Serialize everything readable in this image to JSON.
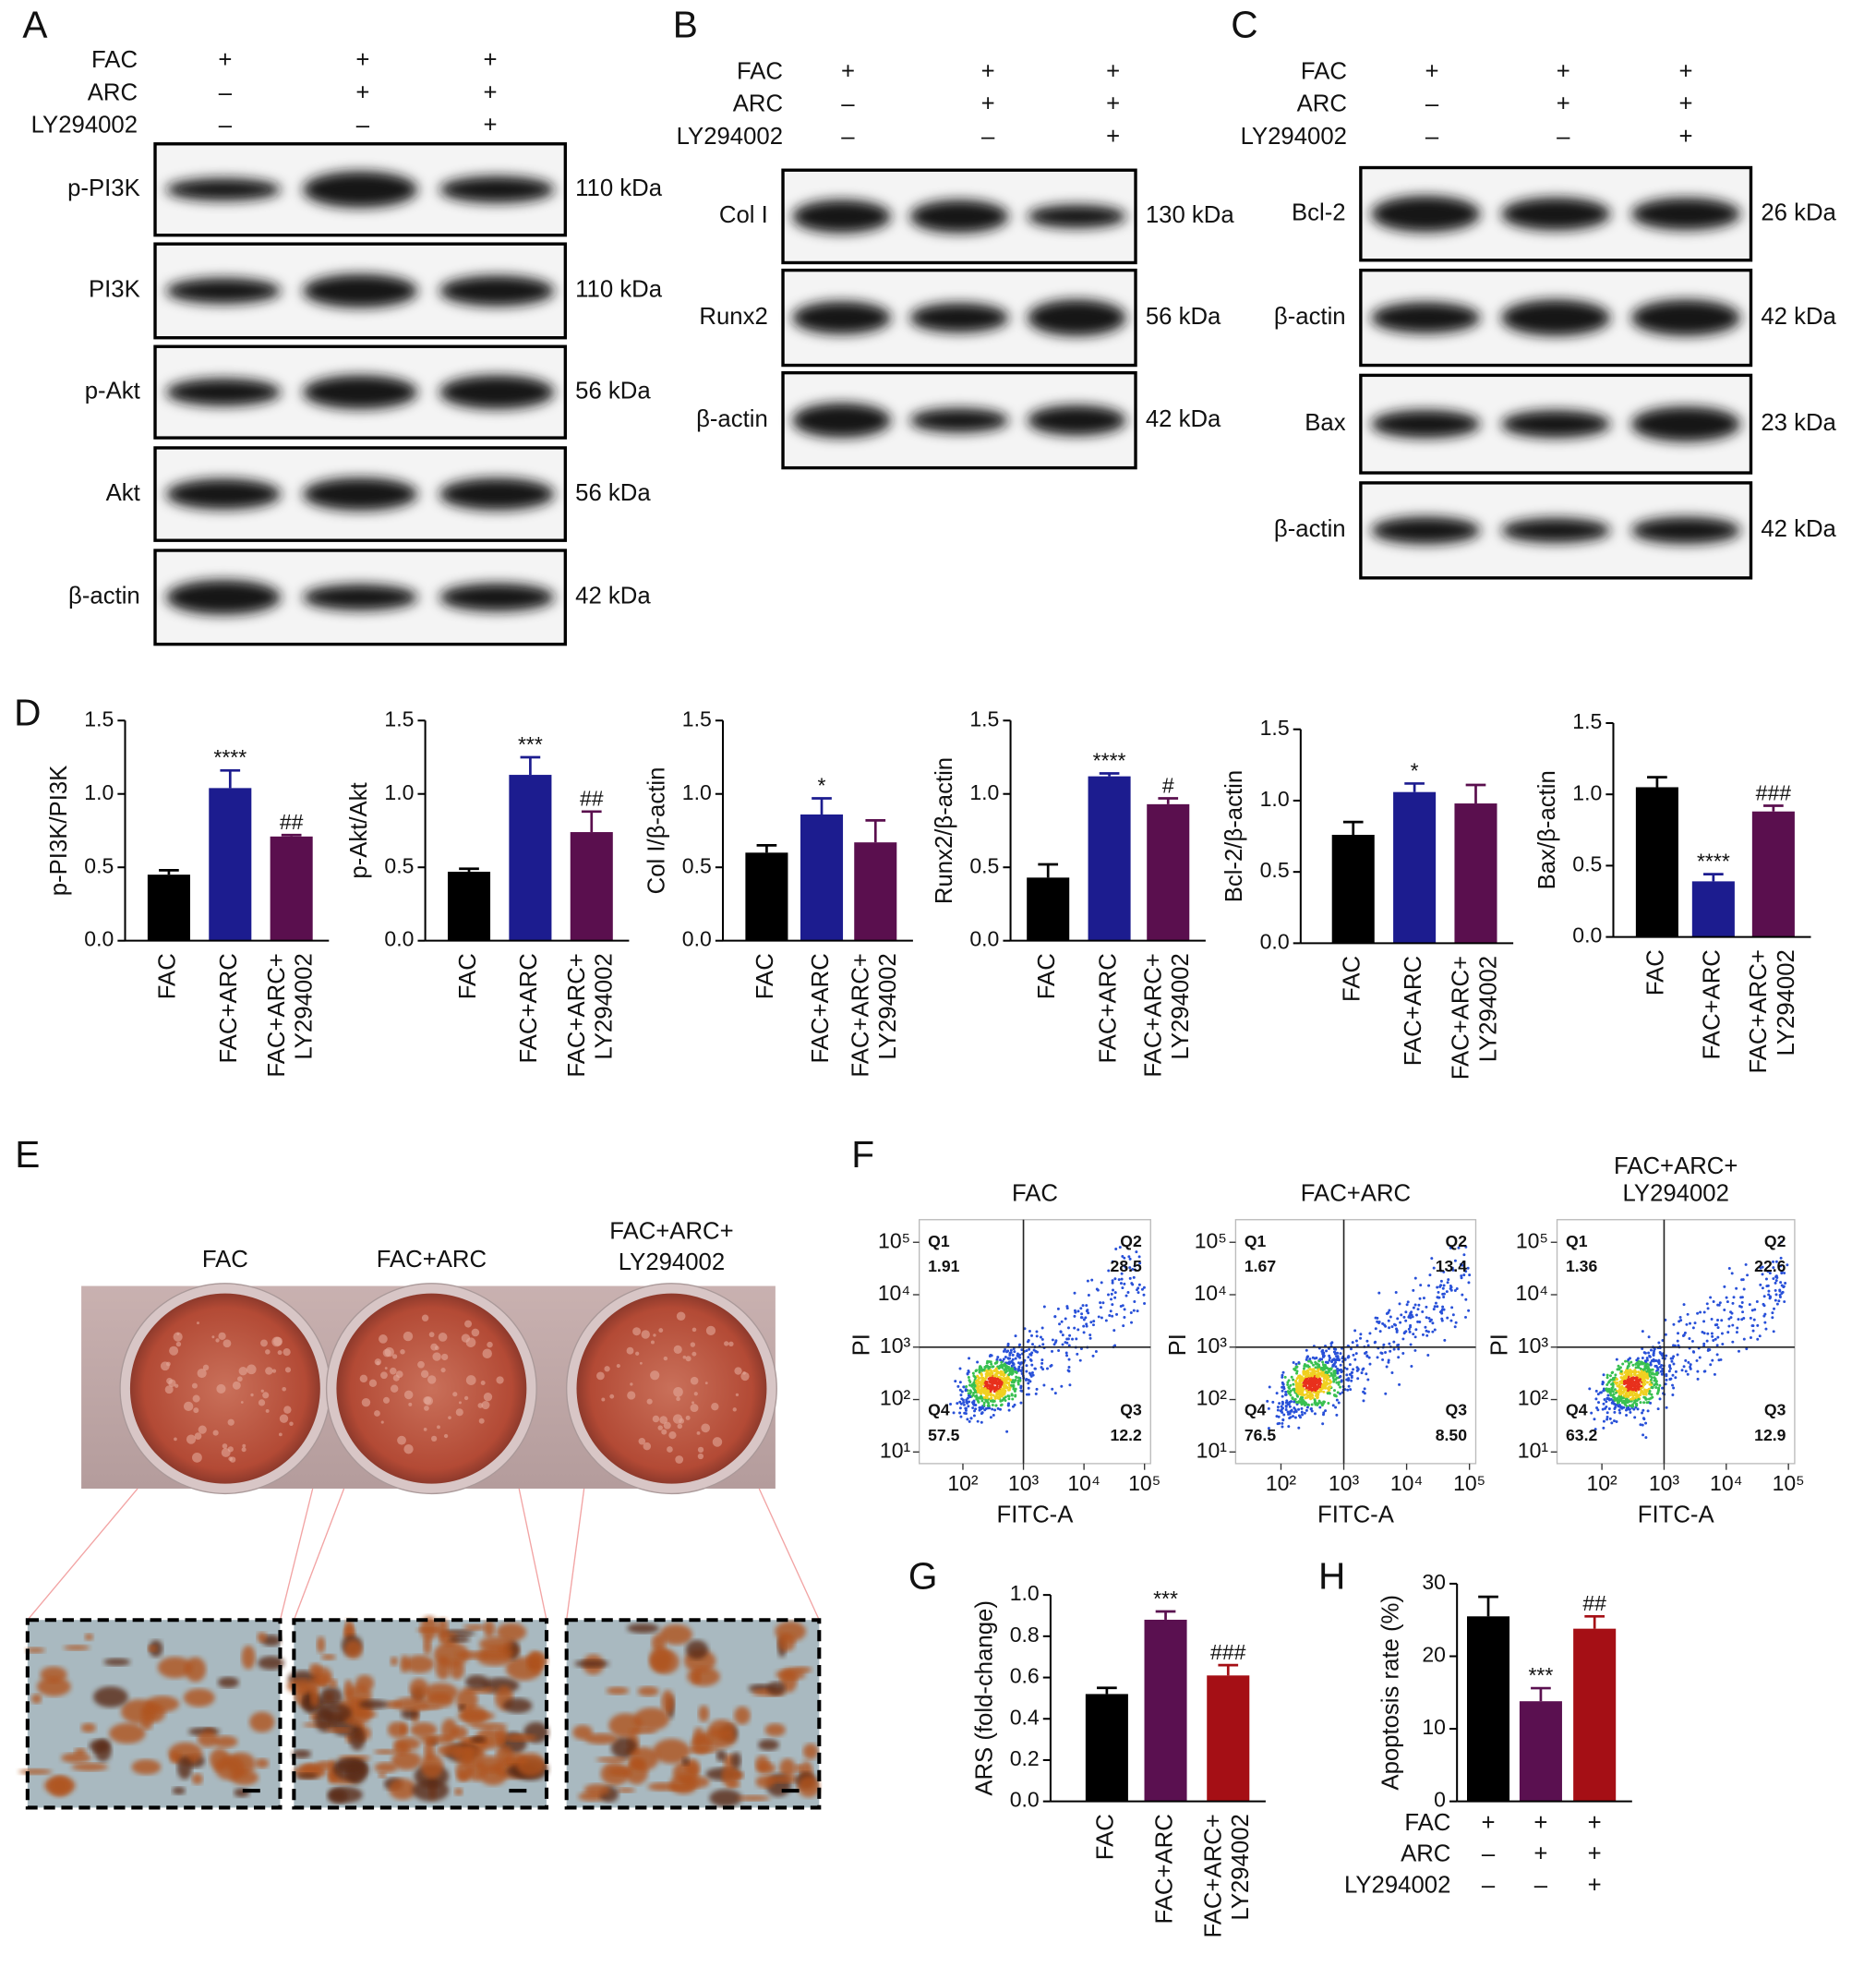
{
  "panel_labels": [
    "A",
    "B",
    "C",
    "D",
    "E",
    "F",
    "G",
    "H"
  ],
  "blots": [
    {
      "treatments": [
        {
          "name": "FAC",
          "signs": [
            "+",
            "+",
            "+"
          ]
        },
        {
          "name": "ARC",
          "signs": [
            "–",
            "+",
            "+"
          ]
        },
        {
          "name": "LY294002",
          "signs": [
            "–",
            "–",
            "+"
          ]
        }
      ],
      "bands": [
        {
          "protein": "p-PI3K",
          "size": "110 kDa"
        },
        {
          "protein": "PI3K",
          "size": "110 kDa"
        },
        {
          "protein": "p-Akt",
          "size": "56 kDa"
        },
        {
          "protein": "Akt",
          "size": "56 kDa"
        },
        {
          "protein": "β-actin",
          "size": "42 kDa"
        }
      ]
    },
    {
      "treatments": [
        {
          "name": "FAC",
          "signs": [
            "+",
            "+",
            "+"
          ]
        },
        {
          "name": "ARC",
          "signs": [
            "–",
            "+",
            "+"
          ]
        },
        {
          "name": "LY294002",
          "signs": [
            "–",
            "–",
            "+"
          ]
        }
      ],
      "bands": [
        {
          "protein": "Col I",
          "size": "130 kDa"
        },
        {
          "protein": "Runx2",
          "size": "56 kDa"
        },
        {
          "protein": "β-actin",
          "size": "42 kDa"
        }
      ]
    },
    {
      "treatments": [
        {
          "name": "FAC",
          "signs": [
            "+",
            "+",
            "+"
          ]
        },
        {
          "name": "ARC",
          "signs": [
            "–",
            "+",
            "+"
          ]
        },
        {
          "name": "LY294002",
          "signs": [
            "–",
            "–",
            "+"
          ]
        }
      ],
      "bands": [
        {
          "protein": "Bcl-2",
          "size": "26 kDa"
        },
        {
          "protein": "β-actin",
          "size": "42 kDa"
        },
        {
          "protein": "Bax",
          "size": "23 kDa"
        },
        {
          "protein": "β-actin",
          "size": "42 kDa"
        }
      ]
    }
  ],
  "staining": {
    "groups": [
      "FAC",
      "FAC+ARC",
      "FAC+ARC+ LY294002"
    ]
  },
  "flow": {
    "x_label": "FITC-A",
    "y_label": "PI",
    "log": true,
    "xlim": [
      19,
      126000
    ],
    "ylim": [
      6,
      270000
    ],
    "xticks": [
      {
        "value": 100,
        "label": "10²"
      },
      {
        "value": 1000,
        "label": "10³"
      },
      {
        "value": 10000,
        "label": "10⁴"
      },
      {
        "value": 100000,
        "label": "10⁵"
      }
    ],
    "yticks": [
      {
        "value": 10,
        "label": "10¹"
      },
      {
        "value": 100,
        "label": "10²"
      },
      {
        "value": 1000,
        "label": "10³"
      },
      {
        "value": 10000,
        "label": "10⁴"
      },
      {
        "value": 100000,
        "label": "10⁵"
      }
    ],
    "gate": [
      1000,
      1000
    ],
    "plots": [
      {
        "title": "FAC",
        "quadrants": [
          {
            "name": "Q1",
            "value": "1.91"
          },
          {
            "name": "Q2",
            "value": "28.5"
          },
          {
            "name": "Q3",
            "value": "12.2"
          },
          {
            "name": "Q4",
            "value": "57.5"
          }
        ]
      },
      {
        "title": "FAC+ARC",
        "quadrants": [
          {
            "name": "Q1",
            "value": "1.67"
          },
          {
            "name": "Q2",
            "value": "13.4"
          },
          {
            "name": "Q3",
            "value": "8.50"
          },
          {
            "name": "Q4",
            "value": "76.5"
          }
        ]
      },
      {
        "title": "FAC+ARC+ LY294002",
        "quadrants": [
          {
            "name": "Q1",
            "value": "1.36"
          },
          {
            "name": "Q2",
            "value": "22.6"
          },
          {
            "name": "Q3",
            "value": "12.9"
          },
          {
            "name": "Q4",
            "value": "63.2"
          }
        ]
      }
    ]
  },
  "chart_data": [
    {
      "type": "bar",
      "y_label": "p-PI3K/PI3K",
      "categories": [
        "FAC",
        "FAC+ARC",
        "FAC+ARC+ LY294002"
      ],
      "values": [
        0.45,
        1.04,
        0.71
      ],
      "errors": [
        0.03,
        0.12,
        0.01
      ],
      "annotations": [
        null,
        "****",
        "##"
      ],
      "colors": [
        "#000000",
        "#1c1c8f",
        "#5a0f4e"
      ],
      "ylim": [
        0,
        1.5
      ],
      "yticks": [
        {
          "value": 0,
          "label": "0.0"
        },
        {
          "value": 0.5,
          "label": "0.5"
        },
        {
          "value": 1,
          "label": "1.0"
        },
        {
          "value": 1.5,
          "label": "1.5"
        }
      ]
    },
    {
      "type": "bar",
      "y_label": "p-Akt/Akt",
      "categories": [
        "FAC",
        "FAC+ARC",
        "FAC+ARC+ LY294002"
      ],
      "values": [
        0.47,
        1.13,
        0.74
      ],
      "errors": [
        0.02,
        0.12,
        0.14
      ],
      "annotations": [
        null,
        "***",
        "##"
      ],
      "colors": [
        "#000000",
        "#1c1c8f",
        "#5a0f4e"
      ],
      "ylim": [
        0,
        1.5
      ],
      "yticks": [
        {
          "value": 0,
          "label": "0.0"
        },
        {
          "value": 0.5,
          "label": "0.5"
        },
        {
          "value": 1,
          "label": "1.0"
        },
        {
          "value": 1.5,
          "label": "1.5"
        }
      ]
    },
    {
      "type": "bar",
      "y_label": "Col I/β-actin",
      "categories": [
        "FAC",
        "FAC+ARC",
        "FAC+ARC+ LY294002"
      ],
      "values": [
        0.6,
        0.86,
        0.67
      ],
      "errors": [
        0.05,
        0.11,
        0.15
      ],
      "annotations": [
        null,
        "*",
        null
      ],
      "colors": [
        "#000000",
        "#1c1c8f",
        "#5a0f4e"
      ],
      "ylim": [
        0,
        1.5
      ],
      "yticks": [
        {
          "value": 0,
          "label": "0.0"
        },
        {
          "value": 0.5,
          "label": "0.5"
        },
        {
          "value": 1,
          "label": "1.0"
        },
        {
          "value": 1.5,
          "label": "1.5"
        }
      ]
    },
    {
      "type": "bar",
      "y_label": "Runx2/β-actin",
      "categories": [
        "FAC",
        "FAC+ARC",
        "FAC+ARC+ LY294002"
      ],
      "values": [
        0.43,
        1.12,
        0.93
      ],
      "errors": [
        0.09,
        0.02,
        0.04
      ],
      "annotations": [
        null,
        "****",
        "#"
      ],
      "colors": [
        "#000000",
        "#1c1c8f",
        "#5a0f4e"
      ],
      "ylim": [
        0,
        1.5
      ],
      "yticks": [
        {
          "value": 0,
          "label": "0.0"
        },
        {
          "value": 0.5,
          "label": "0.5"
        },
        {
          "value": 1,
          "label": "1.0"
        },
        {
          "value": 1.5,
          "label": "1.5"
        }
      ]
    },
    {
      "type": "bar",
      "y_label": "Bcl-2/β-actin",
      "categories": [
        "FAC",
        "FAC+ARC",
        "FAC+ARC+ LY294002"
      ],
      "values": [
        0.76,
        1.06,
        0.98
      ],
      "errors": [
        0.09,
        0.06,
        0.13
      ],
      "annotations": [
        null,
        "*",
        null
      ],
      "colors": [
        "#000000",
        "#1c1c8f",
        "#5a0f4e"
      ],
      "ylim": [
        0,
        1.5
      ],
      "yticks": [
        {
          "value": 0,
          "label": "0.0"
        },
        {
          "value": 0.5,
          "label": "0.5"
        },
        {
          "value": 1,
          "label": "1.0"
        },
        {
          "value": 1.5,
          "label": "1.5"
        }
      ]
    },
    {
      "type": "bar",
      "y_label": "Bax/β-actin",
      "categories": [
        "FAC",
        "FAC+ARC",
        "FAC+ARC+ LY294002"
      ],
      "values": [
        1.05,
        0.39,
        0.88
      ],
      "errors": [
        0.07,
        0.05,
        0.04
      ],
      "annotations": [
        null,
        "****",
        "###"
      ],
      "colors": [
        "#000000",
        "#1c1c8f",
        "#5a0f4e"
      ],
      "ylim": [
        0,
        1.5
      ],
      "yticks": [
        {
          "value": 0,
          "label": "0.0"
        },
        {
          "value": 0.5,
          "label": "0.5"
        },
        {
          "value": 1,
          "label": "1.0"
        },
        {
          "value": 1.5,
          "label": "1.5"
        }
      ]
    },
    {
      "type": "bar",
      "y_label": "ARS (fold-change)",
      "categories": [
        "FAC",
        "FAC+ARC",
        "FAC+ARC+ LY294002"
      ],
      "values": [
        0.52,
        0.88,
        0.61
      ],
      "errors": [
        0.03,
        0.04,
        0.05
      ],
      "annotations": [
        null,
        "***",
        "###"
      ],
      "colors": [
        "#000000",
        "#5a1050",
        "#a50f15"
      ],
      "ylim": [
        0,
        1
      ],
      "yticks": [
        {
          "value": 0,
          "label": "0.0"
        },
        {
          "value": 0.2,
          "label": "0.2"
        },
        {
          "value": 0.4,
          "label": "0.4"
        },
        {
          "value": 0.6,
          "label": "0.6"
        },
        {
          "value": 0.8,
          "label": "0.8"
        },
        {
          "value": 1,
          "label": "1.0"
        }
      ]
    },
    {
      "type": "bar",
      "y_label": "Apoptosis rate (%)",
      "treatments": [
        {
          "name": "FAC",
          "signs": [
            "+",
            "+",
            "+"
          ]
        },
        {
          "name": "ARC",
          "signs": [
            "–",
            "+",
            "+"
          ]
        },
        {
          "name": "LY294002",
          "signs": [
            "–",
            "–",
            "+"
          ]
        }
      ],
      "values": [
        25.5,
        13.8,
        23.8
      ],
      "errors": [
        2.7,
        1.8,
        1.7
      ],
      "annotations": [
        null,
        "***",
        "##"
      ],
      "colors": [
        "#000000",
        "#5a1050",
        "#a50f15"
      ],
      "ylim": [
        0,
        30
      ],
      "yticks": [
        0,
        10,
        20,
        30
      ]
    }
  ]
}
